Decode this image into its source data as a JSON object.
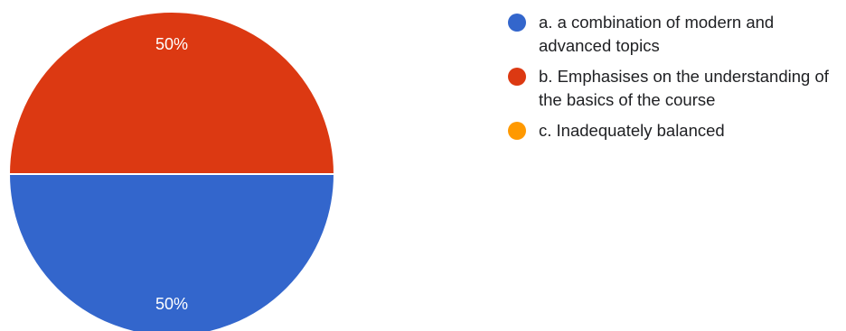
{
  "chart_data": {
    "type": "pie",
    "title": "",
    "slices": [
      {
        "label": "a. a combination of modern and advanced topics",
        "value": 50,
        "color": "#3366cc",
        "display": "50%"
      },
      {
        "label": "b. Emphasises on the understanding of the basics of the course",
        "value": 50,
        "color": "#dc3912",
        "display": "50%"
      },
      {
        "label": "c. Inadequately balanced",
        "value": 0,
        "color": "#ff9900",
        "display": ""
      }
    ],
    "legend_position": "right"
  }
}
